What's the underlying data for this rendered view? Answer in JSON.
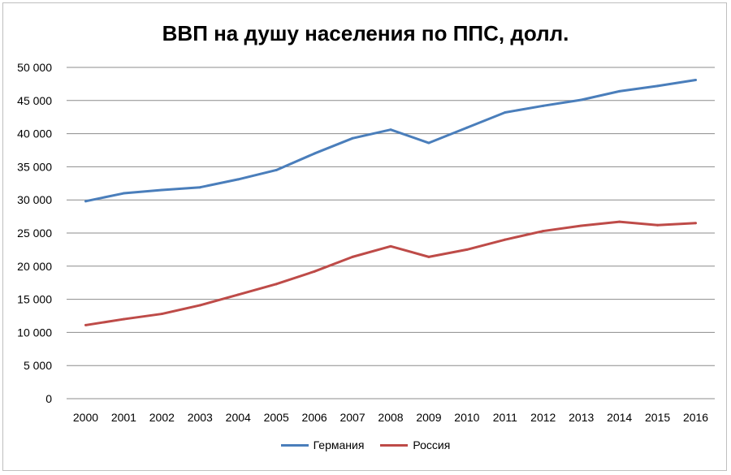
{
  "chart_data": {
    "type": "line",
    "title": "ВВП на душу населения по ППС, долл.",
    "xlabel": "",
    "ylabel": "",
    "ylim": [
      0,
      50000
    ],
    "yticks": [
      0,
      5000,
      10000,
      15000,
      20000,
      25000,
      30000,
      35000,
      40000,
      45000,
      50000
    ],
    "ytick_labels": [
      "0",
      "5 000",
      "10 000",
      "15 000",
      "20 000",
      "25 000",
      "30 000",
      "35 000",
      "40 000",
      "45 000",
      "50 000"
    ],
    "categories": [
      "2000",
      "2001",
      "2002",
      "2003",
      "2004",
      "2005",
      "2006",
      "2007",
      "2008",
      "2009",
      "2010",
      "2011",
      "2012",
      "2013",
      "2014",
      "2015",
      "2016"
    ],
    "grid": true,
    "legend_position": "bottom",
    "series": [
      {
        "name": "Германия",
        "color": "#4a7ebb",
        "values": [
          29800,
          31000,
          31500,
          31900,
          33100,
          34500,
          37000,
          39300,
          40600,
          38600,
          40900,
          43200,
          44200,
          45100,
          46400,
          47200,
          48100
        ]
      },
      {
        "name": "Россия",
        "color": "#be4b48",
        "values": [
          11100,
          12000,
          12800,
          14100,
          15700,
          17300,
          19200,
          21400,
          23000,
          21400,
          22500,
          24000,
          25300,
          26100,
          26700,
          26200,
          26500
        ]
      }
    ]
  }
}
